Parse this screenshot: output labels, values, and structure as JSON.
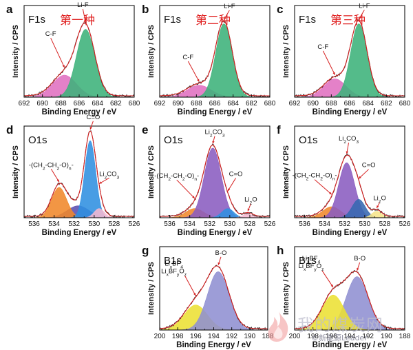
{
  "chart_data": [
    {
      "id": "a",
      "type": "area",
      "panel_letter": "a",
      "region": "F1s",
      "method_label": "第一种",
      "xlabel": "Binding Energy / eV",
      "ylabel": "Intensity / CPS",
      "xlim": [
        692,
        680
      ],
      "xticks": [
        692,
        690,
        688,
        686,
        684,
        682,
        680
      ],
      "peaks": [
        {
          "name": "C-F",
          "center": 687.6,
          "height": 0.24,
          "sigma": 1.3,
          "color": "#e070c0"
        },
        {
          "name": "Li-F",
          "center": 685.3,
          "height": 0.74,
          "sigma": 1.0,
          "color": "#3cb27a"
        }
      ],
      "annotations": [
        {
          "text": "Li-F",
          "peak": 1,
          "dx": 0.3,
          "dy": 0.18
        },
        {
          "text": "C-F",
          "peak": 0,
          "dx": 1.5,
          "dy": 0.36
        }
      ]
    },
    {
      "id": "b",
      "type": "area",
      "panel_letter": "b",
      "region": "F1s",
      "method_label": "第二种",
      "xlabel": "Binding Energy / eV",
      "ylabel": "Intensity / CPS",
      "xlim": [
        692,
        680
      ],
      "xticks": [
        692,
        690,
        688,
        686,
        684,
        682,
        680
      ],
      "peaks": [
        {
          "name": "C-F",
          "center": 687.7,
          "height": 0.13,
          "sigma": 1.3,
          "color": "#e070c0"
        },
        {
          "name": "Li-F",
          "center": 685.0,
          "height": 0.8,
          "sigma": 0.9,
          "color": "#3cb27a"
        }
      ],
      "annotations": [
        {
          "text": "Li-F",
          "peak": 1,
          "dx": -0.6,
          "dy": 0.14
        },
        {
          "text": "C-F",
          "peak": 0,
          "dx": 1.2,
          "dy": 0.26
        }
      ]
    },
    {
      "id": "c",
      "type": "area",
      "panel_letter": "c",
      "region": "F1s",
      "method_label": "第三种",
      "xlabel": "Binding Energy / eV",
      "ylabel": "Intensity / CPS",
      "xlim": [
        692,
        680
      ],
      "xticks": [
        692,
        690,
        688,
        686,
        684,
        682,
        680
      ],
      "peaks": [
        {
          "name": "C-F",
          "center": 687.6,
          "height": 0.2,
          "sigma": 1.2,
          "color": "#e070c0"
        },
        {
          "name": "Li-F",
          "center": 685.0,
          "height": 0.8,
          "sigma": 0.9,
          "color": "#3cb27a"
        }
      ],
      "annotations": [
        {
          "text": "Li-F",
          "peak": 1,
          "dx": -0.6,
          "dy": 0.14
        },
        {
          "text": "C-F",
          "peak": 0,
          "dx": 1.3,
          "dy": 0.3
        }
      ]
    },
    {
      "id": "d",
      "type": "area",
      "panel_letter": "d",
      "region": "O1s",
      "xlabel": "Binding Energy / eV",
      "ylabel": "Intensity / CPS",
      "xlim": [
        537,
        526
      ],
      "xticks": [
        536,
        534,
        532,
        530,
        528,
        526
      ],
      "peaks": [
        {
          "name": "-(CH2-CH2-O)n-",
          "center": 533.5,
          "height": 0.33,
          "sigma": 0.75,
          "color": "#f0882a"
        },
        {
          "name": "",
          "center": 531.6,
          "height": 0.13,
          "sigma": 1.1,
          "color": "#5a4fb0"
        },
        {
          "name": "C=O",
          "center": 530.4,
          "height": 0.84,
          "sigma": 0.55,
          "color": "#2f8fe0"
        },
        {
          "name": "Li2CO3",
          "center": 529.5,
          "height": 0.1,
          "sigma": 0.5,
          "color": "#f4b8d0"
        }
      ],
      "annotations": [
        {
          "text": "C=O",
          "peak": 2,
          "dx": -0.3,
          "dy": 0.13
        },
        {
          "text": "-(CH2-CH2-O)n-",
          "peak": 0,
          "dx": 0.8,
          "dy": 0.18
        },
        {
          "text": "Li2CO3",
          "peak": 3,
          "dx": -1.0,
          "dy": 0.1
        }
      ]
    },
    {
      "id": "e",
      "type": "area",
      "panel_letter": "e",
      "region": "O1s",
      "xlabel": "Binding Energy / eV",
      "ylabel": "Intensity / CPS",
      "xlim": [
        537,
        526
      ],
      "xticks": [
        536,
        534,
        532,
        530,
        528,
        526
      ],
      "peaks": [
        {
          "name": "-(CH2-CH2-O)n-",
          "center": 533.5,
          "height": 0.1,
          "sigma": 0.9,
          "color": "#f0882a"
        },
        {
          "name": "Li2CO3",
          "center": 531.7,
          "height": 0.76,
          "sigma": 0.85,
          "color": "#8a5cc0"
        },
        {
          "name": "C=O",
          "center": 530.2,
          "height": 0.1,
          "sigma": 0.6,
          "color": "#2f8fe0"
        },
        {
          "name": "Li2O",
          "center": 528.2,
          "height": 0.04,
          "sigma": 0.5,
          "color": "#f4b8d0"
        }
      ],
      "annotations": [
        {
          "text": "Li2CO3",
          "peak": 1,
          "dx": -0.2,
          "dy": 0.12
        },
        {
          "text": "-(CH2-CH2-O)n-",
          "peak": 0,
          "dx": 1.8,
          "dy": 0.24
        },
        {
          "text": "C=O",
          "peak": 2,
          "dx": -0.8,
          "dy": 0.18
        },
        {
          "text": "Li2O",
          "peak": 3,
          "dx": -0.3,
          "dy": 0.12
        }
      ]
    },
    {
      "id": "f",
      "type": "area",
      "panel_letter": "f",
      "region": "O1s",
      "xlabel": "Binding Energy / eV",
      "ylabel": "Intensity / CPS",
      "xlim": [
        537,
        526
      ],
      "xticks": [
        536,
        534,
        532,
        530,
        528,
        526
      ],
      "peaks": [
        {
          "name": "-(CH2-CH2-O)n-",
          "center": 533.3,
          "height": 0.12,
          "sigma": 0.9,
          "color": "#f0882a"
        },
        {
          "name": "Li2CO3",
          "center": 531.8,
          "height": 0.6,
          "sigma": 0.8,
          "color": "#8a5cc0"
        },
        {
          "name": "C=O",
          "center": 530.6,
          "height": 0.2,
          "sigma": 0.65,
          "color": "#3568b0"
        },
        {
          "name": "Li2O",
          "center": 528.8,
          "height": 0.07,
          "sigma": 0.5,
          "color": "#f6e58a"
        }
      ],
      "annotations": [
        {
          "text": "Li2CO3",
          "peak": 1,
          "dx": -0.2,
          "dy": 0.16
        },
        {
          "text": "-(CH2-CH2-O)n-",
          "peak": 0,
          "dx": 1.7,
          "dy": 0.2
        },
        {
          "text": "C=O",
          "peak": 2,
          "dx": -1.0,
          "dy": 0.14
        },
        {
          "text": "Li2O",
          "peak": 3,
          "dx": -0.3,
          "dy": 0.1
        }
      ]
    },
    {
      "id": "g",
      "type": "area",
      "panel_letter": "g",
      "region": "B1s",
      "xlabel": "Binding Energy / eV",
      "ylabel": "Intensity / CPS",
      "xlim": [
        200,
        188
      ],
      "xticks": [
        200,
        198,
        196,
        194,
        192,
        190,
        188
      ],
      "peaks": [
        {
          "name": "LixBF4 / LixBFyOz",
          "center": 196.0,
          "height": 0.3,
          "sigma": 1.3,
          "color": "#ece033"
        },
        {
          "name": "B-O",
          "center": 193.5,
          "height": 0.7,
          "sigma": 1.2,
          "color": "#8f8fd2"
        }
      ],
      "annotations": [
        {
          "text": "B-O",
          "peak": 1,
          "dx": -0.3,
          "dy": 0.14
        },
        {
          "text": "LixBF4 LixBFyOz",
          "peak": 0,
          "dx": 1.2,
          "dy": 0.28
        }
      ]
    },
    {
      "id": "h",
      "type": "area",
      "panel_letter": "h",
      "region": "B1s",
      "xlabel": "Binding Energy / eV",
      "ylabel": "Intensity / CPS",
      "xlim": [
        200,
        188
      ],
      "xticks": [
        200,
        198,
        196,
        194,
        192,
        190,
        188
      ],
      "peaks": [
        {
          "name": "LixBF4 / LixBFyOz",
          "center": 195.8,
          "height": 0.42,
          "sigma": 1.2,
          "color": "#ece033"
        },
        {
          "name": "B-O",
          "center": 193.2,
          "height": 0.64,
          "sigma": 1.2,
          "color": "#8f8fd2"
        }
      ],
      "annotations": [
        {
          "text": "B-O",
          "peak": 1,
          "dx": -0.3,
          "dy": 0.14
        },
        {
          "text": "LixBF4 LixBFyOz",
          "peak": 0,
          "dx": 1.2,
          "dy": 0.24
        }
      ]
    }
  ],
  "watermark": {
    "main": "我的煤炭网",
    "sub": "©新能源Leader"
  },
  "colors": {
    "envelope": "#d62020",
    "raw": "#2a2a2a",
    "method_label": "#e02020"
  }
}
